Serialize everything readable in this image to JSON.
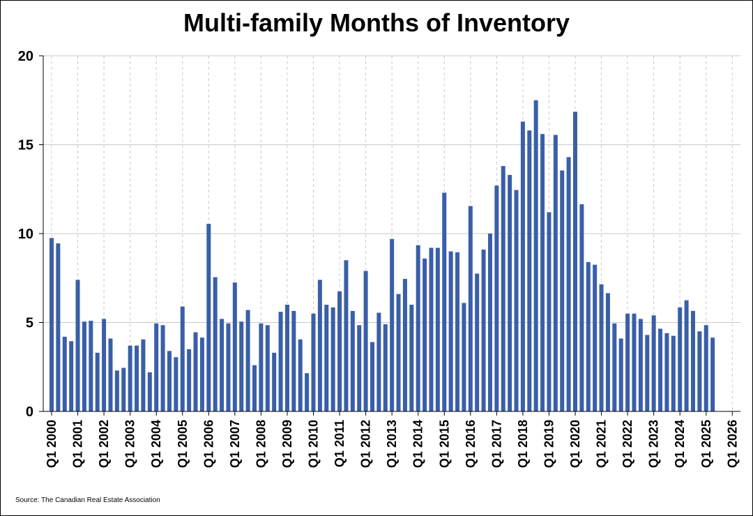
{
  "title": "Multi-family Months of Inventory",
  "source": "Source: The Canadian Real Estate Association",
  "colors": {
    "bar": "#3a5fa8",
    "grid": "#c8c8c8",
    "axis": "#000000"
  },
  "chart_data": {
    "type": "bar",
    "title": "Multi-family Months of Inventory",
    "xlabel": "",
    "ylabel": "",
    "ylim": [
      0,
      20
    ],
    "yticks": [
      0,
      5,
      10,
      15,
      20
    ],
    "grid": true,
    "x_tick_labels": [
      "Q1 2000",
      "Q1 2001",
      "Q1 2002",
      "Q1 2003",
      "Q1 2004",
      "Q1 2005",
      "Q1 2006",
      "Q1 2007",
      "Q1 2008",
      "Q1 2009",
      "Q1 2010",
      "Q1 2011",
      "Q1 2012",
      "Q1 2013",
      "Q1 2014",
      "Q1 2015",
      "Q1 2016",
      "Q1 2017",
      "Q1 2018",
      "Q1 2019",
      "Q1 2020",
      "Q1 2021",
      "Q1 2022",
      "Q1 2023",
      "Q1 2024",
      "Q1 2025",
      "Q1 2026"
    ],
    "values": [
      9.75,
      9.45,
      4.2,
      3.95,
      7.4,
      5.05,
      5.1,
      3.3,
      5.2,
      4.1,
      2.3,
      2.45,
      3.7,
      3.7,
      4.05,
      2.2,
      4.95,
      4.85,
      3.4,
      3.05,
      5.9,
      3.5,
      4.45,
      4.15,
      10.55,
      7.55,
      5.2,
      4.95,
      7.25,
      5.05,
      5.7,
      2.6,
      4.95,
      4.85,
      3.3,
      5.6,
      6.0,
      5.65,
      4.05,
      2.15,
      5.5,
      7.4,
      6.0,
      5.85,
      6.75,
      8.5,
      5.65,
      4.85,
      7.9,
      3.9,
      5.55,
      4.9,
      9.7,
      6.6,
      7.45,
      6.0,
      9.35,
      8.6,
      9.2,
      9.2,
      12.3,
      9.0,
      8.95,
      6.1,
      11.55,
      7.75,
      9.1,
      10.0,
      12.7,
      13.8,
      13.3,
      12.45,
      16.3,
      15.8,
      17.5,
      15.6,
      11.2,
      15.55,
      13.55,
      14.3,
      16.85,
      11.65,
      8.4,
      8.25,
      7.15,
      6.65,
      4.95,
      4.1,
      5.5,
      5.5,
      5.2,
      4.3,
      5.4,
      4.65,
      4.4,
      4.25,
      5.85,
      6.25,
      5.65,
      4.5,
      4.85,
      4.15
    ]
  }
}
